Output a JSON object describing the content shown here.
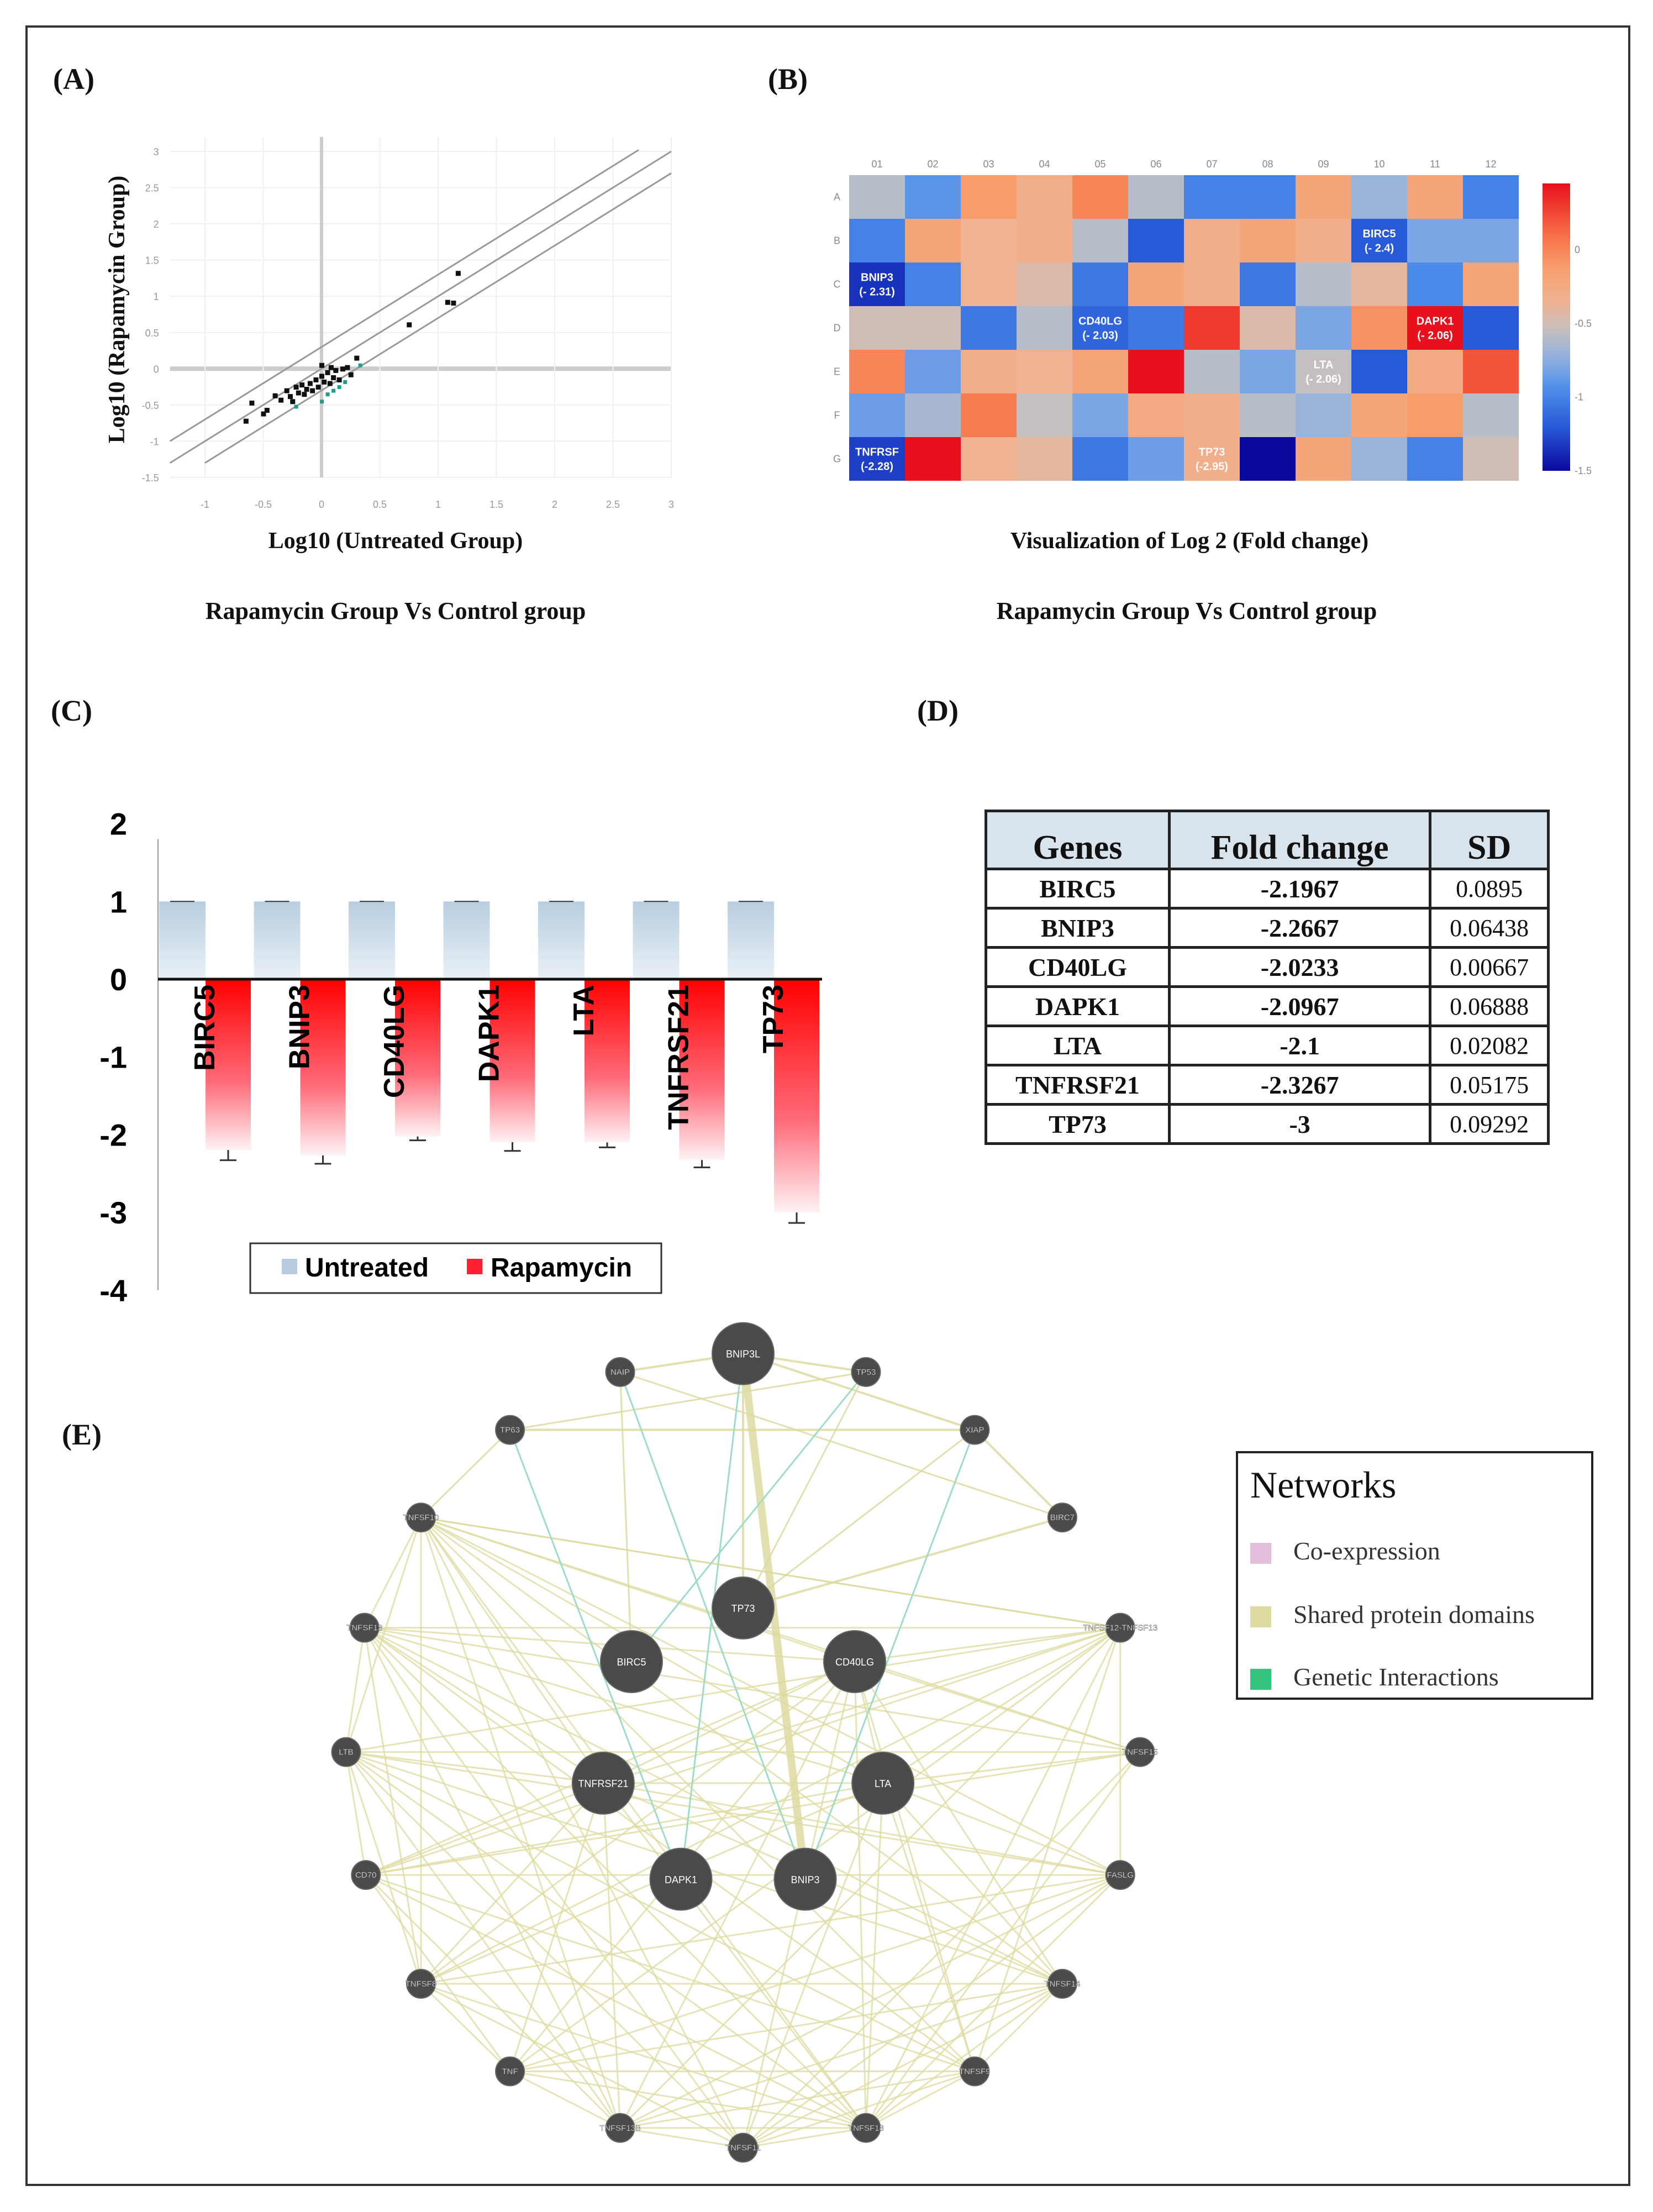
{
  "panels": {
    "a": "(A)",
    "b": "(B)",
    "c": "(C)",
    "d": "(D)",
    "e": "(E)"
  },
  "chart_data": [
    {
      "id": "scatter",
      "type": "scatter",
      "xlabel": "Log10 (Untreated Group)",
      "ylabel": "Log10 (Rapamycin Group)",
      "subtitle": "Rapamycin  Group  Vs Control group",
      "xlim": [
        -1.3,
        3
      ],
      "ylim": [
        -1.5,
        3
      ],
      "xticks": [
        "-1",
        "-0.5",
        "0",
        "0.5",
        "1",
        "1.5",
        "2",
        "2.5",
        "3"
      ],
      "xtick_values": [
        -1,
        -0.5,
        0,
        0.5,
        1,
        1.5,
        2,
        2.5,
        3
      ],
      "yticks": [
        "3",
        "2.5",
        "2",
        "1.5",
        "1",
        "0.5",
        "0",
        "-0.5",
        "-1",
        "-1.5"
      ],
      "ytick_values": [
        3,
        2.5,
        2,
        1.5,
        1,
        0.5,
        0,
        -0.5,
        -1,
        -1.5
      ],
      "boundary_offsets": [
        0.3,
        0,
        -0.3
      ],
      "points": [
        [
          1.17,
          1.32
        ],
        [
          1.08,
          0.92
        ],
        [
          1.13,
          0.91
        ],
        [
          0.75,
          0.61
        ],
        [
          -0.65,
          -0.72
        ],
        [
          -0.6,
          -0.47
        ],
        [
          -0.5,
          -0.62
        ],
        [
          -0.47,
          -0.57
        ],
        [
          -0.4,
          -0.37
        ],
        [
          -0.35,
          -0.43
        ],
        [
          -0.3,
          -0.3
        ],
        [
          -0.27,
          -0.38
        ],
        [
          -0.22,
          -0.25
        ],
        [
          -0.2,
          -0.33
        ],
        [
          -0.17,
          -0.22
        ],
        [
          -0.13,
          -0.28
        ],
        [
          -0.1,
          -0.2
        ],
        [
          -0.08,
          -0.3
        ],
        [
          -0.05,
          -0.15
        ],
        [
          -0.03,
          -0.25
        ],
        [
          0,
          -0.1
        ],
        [
          0.0,
          0.05
        ],
        [
          0.02,
          -0.18
        ],
        [
          0.05,
          -0.05
        ],
        [
          0.07,
          -0.2
        ],
        [
          0.1,
          -0.12
        ],
        [
          0.12,
          -0.02
        ],
        [
          0.15,
          -0.15
        ],
        [
          0.18,
          0.0
        ],
        [
          0.22,
          0.02
        ],
        [
          0.3,
          0.15
        ],
        [
          0.25,
          -0.08
        ],
        [
          -0.15,
          -0.35
        ],
        [
          -0.25,
          -0.45
        ],
        [
          0.08,
          0.02
        ]
      ],
      "points_down": [
        [
          -0.22,
          -0.52
        ],
        [
          0.0,
          -0.45
        ],
        [
          0.05,
          -0.35
        ],
        [
          0.15,
          -0.25
        ],
        [
          0.2,
          -0.18
        ],
        [
          0.33,
          0.05
        ],
        [
          0.1,
          -0.3
        ]
      ]
    },
    {
      "id": "heatmap",
      "type": "heatmap",
      "title": "Visualization of Log 2 (Fold change)",
      "subtitle": "Rapamycin  Group  Vs Control group",
      "columns": [
        "01",
        "02",
        "03",
        "04",
        "05",
        "06",
        "07",
        "08",
        "09",
        "10",
        "11",
        "12"
      ],
      "rows": [
        "A",
        "B",
        "C",
        "D",
        "E",
        "F",
        "G"
      ],
      "colorbar_ticks": [
        "0",
        "-0.5",
        "-1",
        "-1.5"
      ],
      "colorbar_tick_values": [
        0,
        -0.5,
        -1,
        -1.5
      ],
      "range": [
        -1.5,
        0.45
      ],
      "values": [
        [
          -0.6,
          -0.9,
          -0.1,
          -0.3,
          0.0,
          -0.6,
          -1.0,
          -1.0,
          -0.2,
          -0.7,
          -0.2,
          -1.0
        ],
        [
          -1.0,
          -0.2,
          -0.35,
          -0.3,
          -0.6,
          -1.2,
          -0.3,
          -0.2,
          -0.3,
          -1.2,
          -0.8,
          -0.8
        ],
        [
          -1.35,
          -1.0,
          -0.35,
          -0.45,
          -1.05,
          -0.2,
          -0.3,
          -1.05,
          -0.6,
          -0.4,
          -0.95,
          -0.2
        ],
        [
          -0.5,
          -0.5,
          -1.05,
          -0.6,
          -1.15,
          -1.05,
          0.3,
          -0.45,
          -0.8,
          -0.05,
          0.45,
          -1.2
        ],
        [
          0.0,
          -0.85,
          -0.3,
          -0.35,
          -0.2,
          0.45,
          -0.6,
          -0.8,
          -0.55,
          -1.2,
          -0.25,
          0.2
        ],
        [
          -0.85,
          -0.65,
          0.05,
          -0.55,
          -0.8,
          -0.25,
          -0.3,
          -0.6,
          -0.7,
          -0.2,
          -0.1,
          -0.6
        ],
        [
          -1.3,
          0.45,
          -0.35,
          -0.4,
          -1.05,
          -0.85,
          -0.3,
          -1.5,
          -0.2,
          -0.7,
          -1.0,
          -0.5
        ]
      ],
      "annotations": [
        {
          "row": 1,
          "col": 9,
          "gene": "BIRC5",
          "value": "(- 2.4)"
        },
        {
          "row": 2,
          "col": 0,
          "gene": "BNIP3",
          "value": "(- 2.31)"
        },
        {
          "row": 3,
          "col": 4,
          "gene": "CD40LG",
          "value": "(- 2.03)"
        },
        {
          "row": 3,
          "col": 10,
          "gene": "DAPK1",
          "value": "(- 2.06)"
        },
        {
          "row": 4,
          "col": 8,
          "gene": "LTA",
          "value": "(- 2.06)"
        },
        {
          "row": 6,
          "col": 0,
          "gene": "TNFRSF",
          "value": "(-2.28)"
        },
        {
          "row": 6,
          "col": 6,
          "gene": "TP73",
          "value": "(-2.95)"
        }
      ]
    },
    {
      "id": "bars",
      "type": "bar",
      "categories": [
        "BIRC5",
        "BNIP3",
        "CD40LG",
        "DAPK1",
        "LTA",
        "TNFRSF21",
        "TP73"
      ],
      "series": [
        {
          "name": "Untreated",
          "values": [
            1,
            1,
            1,
            1,
            1,
            1,
            1
          ],
          "color": "#c5d7e6"
        },
        {
          "name": "Rapamycin",
          "values": [
            -2.1967,
            -2.2667,
            -2.0233,
            -2.0967,
            -2.1,
            -2.3267,
            -3
          ],
          "errors": [
            0.0895,
            0.06438,
            0.00667,
            0.06888,
            0.02082,
            0.05175,
            0.09292
          ],
          "color": "#ff1a1a"
        }
      ],
      "ylim": [
        -4,
        2
      ],
      "yticks": [
        "2",
        "1",
        "0",
        "-1",
        "-2",
        "-3",
        "-4"
      ],
      "ytick_values": [
        2,
        1,
        0,
        -1,
        -2,
        -3,
        -4
      ],
      "legend": "bottom"
    },
    {
      "id": "table",
      "type": "table",
      "headers": [
        "Genes",
        "Fold change",
        "SD"
      ],
      "rows": [
        [
          "BIRC5",
          "-2.1967",
          "0.0895"
        ],
        [
          "BNIP3",
          "-2.2667",
          "0.06438"
        ],
        [
          "CD40LG",
          "-2.0233",
          "0.00667"
        ],
        [
          "DAPK1",
          "-2.0967",
          "0.06888"
        ],
        [
          "LTA",
          "-2.1",
          "0.02082"
        ],
        [
          "TNFRSF21",
          "-2.3267",
          "0.05175"
        ],
        [
          "TP73",
          "-3",
          "0.09292"
        ]
      ]
    }
  ],
  "network": {
    "legend_title": "Networks",
    "legend": [
      {
        "label": "Co-expression",
        "color": "#e3bfdc"
      },
      {
        "label": "Shared protein domains",
        "color": "#dedba0"
      },
      {
        "label": "Genetic Interactions",
        "color": "#35c47d"
      }
    ],
    "query_nodes": [
      "BNIP3L",
      "TP73",
      "BIRC5",
      "CD40LG",
      "TNFRSF21",
      "LTA",
      "DAPK1",
      "BNIP3"
    ],
    "nodes": [
      "BNIP3L",
      "NAIP",
      "TP53",
      "TP63",
      "XIAP",
      "BIRC7",
      "TNFSF10",
      "TNFSF13",
      "TNFSF12-TNFSF13",
      "TP73",
      "BIRC5",
      "CD40LG",
      "LTB",
      "TNFSF15",
      "TNFRSF21",
      "LTA",
      "CD70",
      "FASLG",
      "DAPK1",
      "BNIP3",
      "TNFSF8",
      "TNFSF14",
      "TNF",
      "TNFSF9",
      "TNFSF13B",
      "TNFSF11",
      "TNFSF18"
    ]
  }
}
